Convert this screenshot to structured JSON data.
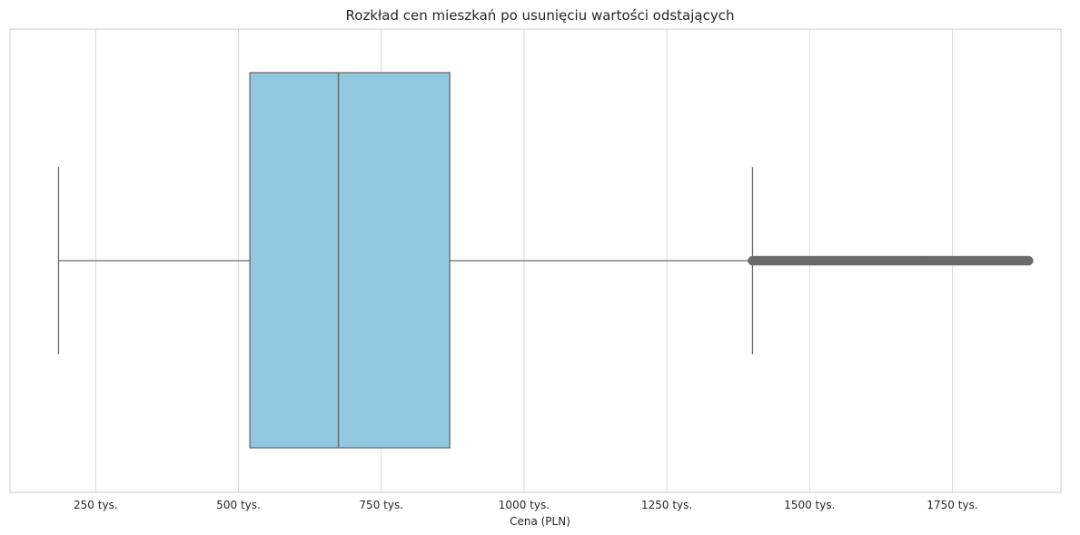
{
  "chart_data": {
    "type": "box",
    "title": "Rozkład cen mieszkań po usunięciu wartości odstających",
    "xlabel": "Cena (PLN)",
    "ylabel": "",
    "x_ticks": [
      {
        "value": 250000,
        "label": "250 tys."
      },
      {
        "value": 500000,
        "label": "500 tys."
      },
      {
        "value": 750000,
        "label": "750 tys."
      },
      {
        "value": 1000000,
        "label": "1000 tys."
      },
      {
        "value": 1250000,
        "label": "1250 tys."
      },
      {
        "value": 1500000,
        "label": "1500 tys."
      },
      {
        "value": 1750000,
        "label": "1750 tys."
      }
    ],
    "xlim": [
      100000,
      1940000
    ],
    "grid": true,
    "box": {
      "whisker_low": 185000,
      "q1": 520000,
      "median": 675000,
      "q3": 870000,
      "whisker_high": 1400000,
      "outliers_min": 1400000,
      "outliers_max": 1885000
    },
    "colors": {
      "box_fill": "#92c8df",
      "line": "#6a6a6a",
      "grid": "#d9d9d9",
      "frame": "#cccccc"
    }
  }
}
